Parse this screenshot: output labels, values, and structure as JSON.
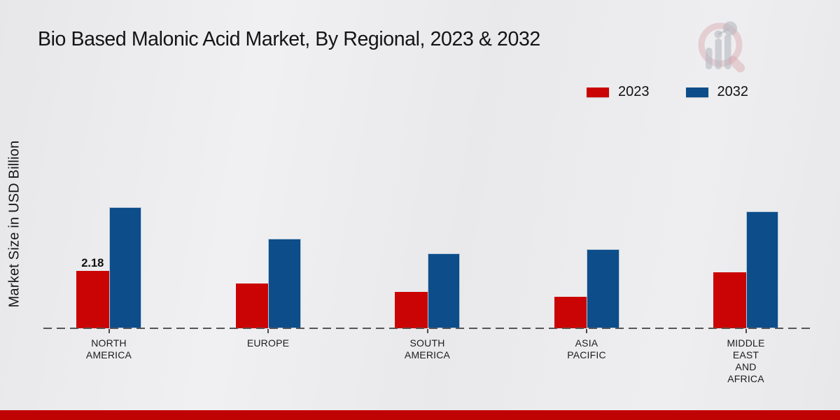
{
  "title": "Bio Based Malonic Acid Market, By Regional, 2023 & 2032",
  "y_axis_label": "Market Size in USD Billion",
  "legend": {
    "position": "top-right",
    "items": [
      {
        "label": "2023",
        "color": "#ca0404"
      },
      {
        "label": "2032",
        "color": "#0d4d8a"
      }
    ]
  },
  "branding": {
    "watermark_icon": "magnifier-growth-chart-logo"
  },
  "footer": {
    "bar_color": "#bf0202"
  },
  "axis": {
    "baseline_style": "dashed",
    "baseline_color": "#565656"
  },
  "chart_data": {
    "type": "bar",
    "title": "Bio Based Malonic Acid Market, By Regional, 2023 & 2032",
    "xlabel": "",
    "ylabel": "Market Size in USD Billion",
    "ylim": [
      0,
      5
    ],
    "grid": false,
    "legend_position": "top-right",
    "categories": [
      "North America",
      "Europe",
      "South America",
      "Asia Pacific",
      "Middle East and Africa"
    ],
    "category_label_lines": [
      [
        "NORTH",
        "AMERICA"
      ],
      [
        "EUROPE"
      ],
      [
        "SOUTH",
        "AMERICA"
      ],
      [
        "ASIA",
        "PACIFIC"
      ],
      [
        "MIDDLE",
        "EAST",
        "AND",
        "AFRICA"
      ]
    ],
    "series": [
      {
        "name": "2023",
        "color": "#ca0404",
        "values": [
          2.18,
          1.72,
          1.39,
          1.19,
          2.14
        ]
      },
      {
        "name": "2032",
        "color": "#0d4d8a",
        "values": [
          4.62,
          3.42,
          2.86,
          3.01,
          4.46
        ]
      }
    ],
    "data_labels": [
      {
        "series_index": 0,
        "category_index": 0,
        "text": "2.18"
      }
    ]
  }
}
